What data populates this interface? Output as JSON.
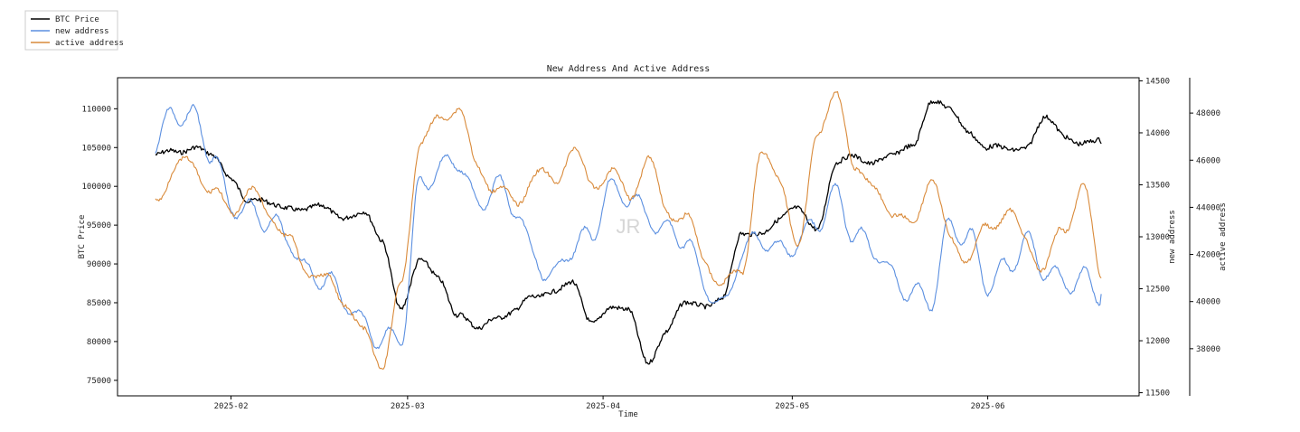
{
  "chart_data": {
    "type": "line",
    "title": "New Address And Active Address",
    "xlabel": "Time",
    "watermark": "JR",
    "legend": {
      "placement": "top-left",
      "entries": [
        {
          "label": "BTC Price",
          "color": "#000000"
        },
        {
          "label": "new address",
          "color": "#5b8fe0"
        },
        {
          "label": "active address",
          "color": "#d98a3a"
        }
      ]
    },
    "x_range": [
      "2025-01-14",
      "2025-06-25"
    ],
    "x_ticks": [
      "2025-02",
      "2025-03",
      "2025-04",
      "2025-05",
      "2025-06"
    ],
    "x_tick_dates": [
      "2025-02-01",
      "2025-03-01",
      "2025-04-01",
      "2025-05-01",
      "2025-06-01"
    ],
    "axes": {
      "left": {
        "label": "BTC Price",
        "ylim": [
          73000,
          114000
        ],
        "ticks": [
          75000,
          80000,
          85000,
          90000,
          95000,
          100000,
          105000,
          110000
        ]
      },
      "right1": {
        "label": "new address",
        "ylim": [
          11470,
          14530
        ],
        "ticks": [
          11500,
          12000,
          12500,
          13000,
          13500,
          14000,
          14500
        ]
      },
      "right2": {
        "label": "active address",
        "ylim": [
          36000,
          49500
        ],
        "ticks": [
          38000,
          40000,
          42000,
          44000,
          46000,
          48000
        ]
      }
    },
    "series": [
      {
        "name": "BTC Price",
        "axis": "left",
        "color": "#000000",
        "dates": [
          "2025-01-20",
          "2025-01-23",
          "2025-01-26",
          "2025-01-29",
          "2025-02-01",
          "2025-02-04",
          "2025-02-07",
          "2025-02-10",
          "2025-02-13",
          "2025-02-16",
          "2025-02-19",
          "2025-02-22",
          "2025-02-25",
          "2025-02-28",
          "2025-03-03",
          "2025-03-06",
          "2025-03-09",
          "2025-03-12",
          "2025-03-15",
          "2025-03-18",
          "2025-03-21",
          "2025-03-24",
          "2025-03-27",
          "2025-03-30",
          "2025-04-02",
          "2025-04-05",
          "2025-04-08",
          "2025-04-11",
          "2025-04-14",
          "2025-04-17",
          "2025-04-20",
          "2025-04-23",
          "2025-04-26",
          "2025-04-29",
          "2025-05-02",
          "2025-05-05",
          "2025-05-08",
          "2025-05-11",
          "2025-05-14",
          "2025-05-17",
          "2025-05-20",
          "2025-05-23",
          "2025-05-26",
          "2025-05-29",
          "2025-06-01",
          "2025-06-04",
          "2025-06-07",
          "2025-06-10",
          "2025-06-13",
          "2025-06-16",
          "2025-06-19"
        ],
        "values": [
          103500,
          104800,
          105200,
          103500,
          101500,
          98000,
          97500,
          97800,
          96700,
          97200,
          96400,
          96200,
          93000,
          84500,
          90000,
          88500,
          83500,
          81200,
          83600,
          83800,
          85500,
          87000,
          87300,
          82400,
          84800,
          83600,
          77500,
          81500,
          84500,
          85000,
          85700,
          93500,
          94500,
          95500,
          97000,
          95000,
          102500,
          104000,
          103400,
          103500,
          105500,
          111000,
          109500,
          107500,
          104800,
          104500,
          105500,
          108500,
          106500,
          106000,
          105500
        ]
      },
      {
        "name": "new address",
        "axis": "right1",
        "color": "#5b8fe0",
        "dates": [
          "2025-01-20",
          "2025-01-23",
          "2025-01-26",
          "2025-01-29",
          "2025-02-01",
          "2025-02-04",
          "2025-02-07",
          "2025-02-10",
          "2025-02-13",
          "2025-02-16",
          "2025-02-19",
          "2025-02-22",
          "2025-02-25",
          "2025-02-28",
          "2025-03-03",
          "2025-03-06",
          "2025-03-09",
          "2025-03-12",
          "2025-03-15",
          "2025-03-18",
          "2025-03-21",
          "2025-03-24",
          "2025-03-27",
          "2025-03-30",
          "2025-04-02",
          "2025-04-05",
          "2025-04-08",
          "2025-04-11",
          "2025-04-14",
          "2025-04-17",
          "2025-04-20",
          "2025-04-23",
          "2025-04-26",
          "2025-04-29",
          "2025-05-02",
          "2025-05-05",
          "2025-05-08",
          "2025-05-11",
          "2025-05-14",
          "2025-05-17",
          "2025-05-20",
          "2025-05-23",
          "2025-05-26",
          "2025-05-29",
          "2025-06-01",
          "2025-06-04",
          "2025-06-07",
          "2025-06-10",
          "2025-06-13",
          "2025-06-16",
          "2025-06-19"
        ],
        "values": [
          13900,
          14200,
          14150,
          13800,
          13300,
          13250,
          13150,
          13000,
          12650,
          12600,
          12400,
          12150,
          12000,
          12050,
          13500,
          13650,
          13750,
          13300,
          13500,
          13300,
          12800,
          12600,
          12900,
          13000,
          13450,
          13400,
          13200,
          13050,
          13000,
          12550,
          12300,
          12850,
          13000,
          12850,
          12950,
          13150,
          13400,
          13000,
          12900,
          12600,
          12450,
          12400,
          13100,
          13000,
          12550,
          12700,
          12950,
          12700,
          12550,
          12600,
          12450
        ]
      },
      {
        "name": "active address",
        "axis": "right2",
        "color": "#d98a3a",
        "dates": [
          "2025-01-20",
          "2025-01-23",
          "2025-01-26",
          "2025-01-29",
          "2025-02-01",
          "2025-02-04",
          "2025-02-07",
          "2025-02-10",
          "2025-02-13",
          "2025-02-16",
          "2025-02-19",
          "2025-02-22",
          "2025-02-25",
          "2025-02-28",
          "2025-03-03",
          "2025-03-06",
          "2025-03-09",
          "2025-03-12",
          "2025-03-15",
          "2025-03-18",
          "2025-03-21",
          "2025-03-24",
          "2025-03-27",
          "2025-03-30",
          "2025-04-02",
          "2025-04-05",
          "2025-04-08",
          "2025-04-11",
          "2025-04-14",
          "2025-04-17",
          "2025-04-20",
          "2025-04-23",
          "2025-04-26",
          "2025-04-29",
          "2025-05-02",
          "2025-05-05",
          "2025-05-08",
          "2025-05-11",
          "2025-05-14",
          "2025-05-17",
          "2025-05-20",
          "2025-05-23",
          "2025-05-26",
          "2025-05-29",
          "2025-06-01",
          "2025-06-04",
          "2025-06-07",
          "2025-06-10",
          "2025-06-13",
          "2025-06-16",
          "2025-06-19"
        ],
        "values": [
          44500,
          45500,
          46000,
          44500,
          44000,
          44500,
          44000,
          42500,
          41500,
          40800,
          40200,
          38500,
          37500,
          40500,
          47000,
          47500,
          48500,
          45500,
          45000,
          44000,
          45500,
          45000,
          46500,
          45000,
          45500,
          44500,
          46000,
          44000,
          43500,
          42000,
          40500,
          41500,
          46000,
          45500,
          42000,
          47500,
          48500,
          46000,
          44500,
          44000,
          43000,
          45500,
          42500,
          42000,
          43000,
          44000,
          42500,
          41500,
          43000,
          45000,
          41000
        ]
      }
    ]
  }
}
